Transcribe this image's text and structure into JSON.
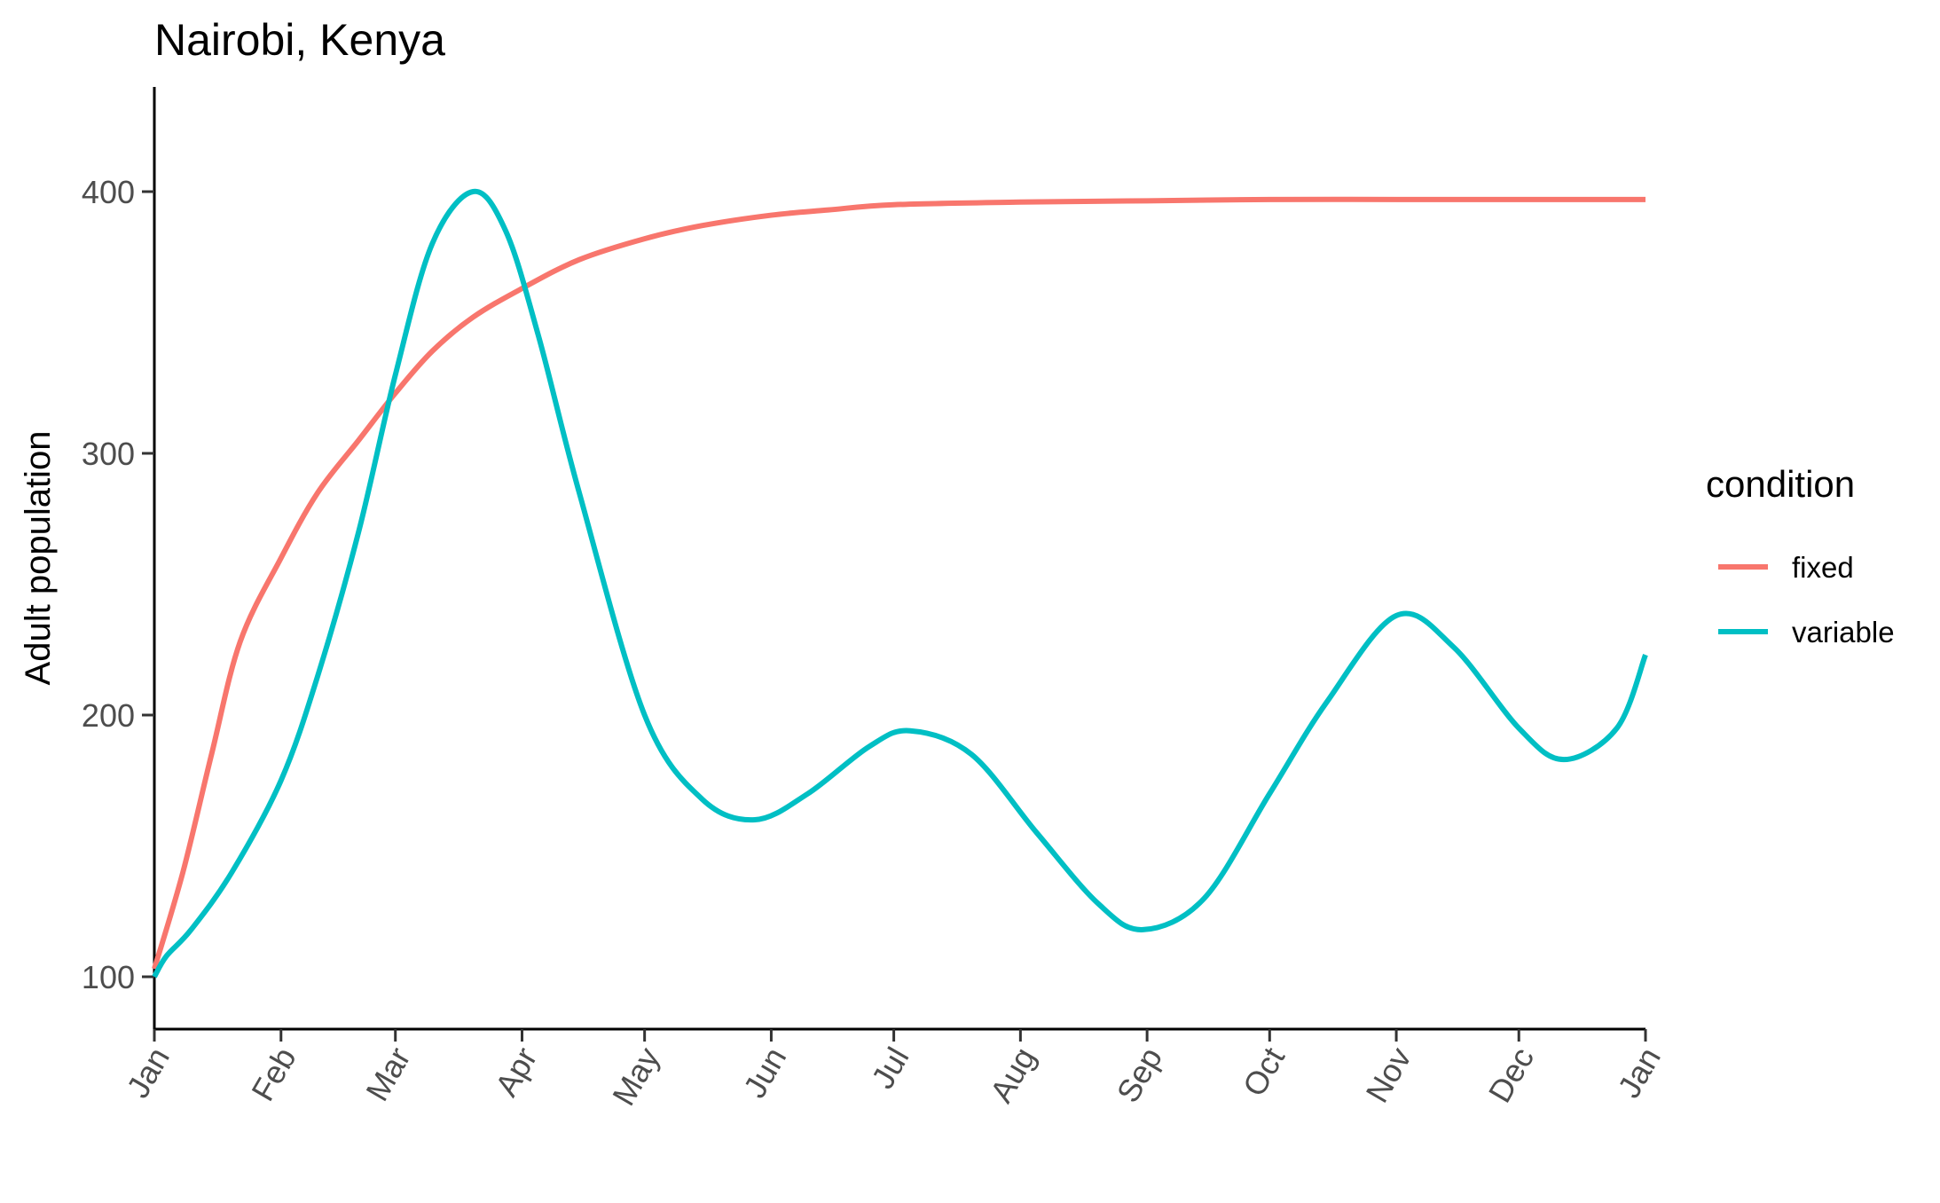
{
  "chart_data": {
    "type": "line",
    "title": "Nairobi, Kenya",
    "xlabel": "",
    "ylabel": "Adult population",
    "x_ticks": [
      "Jan",
      "Feb",
      "Mar",
      "Apr",
      "May",
      "Jun",
      "Jul",
      "Aug",
      "Sep",
      "Oct",
      "Nov",
      "Dec",
      "Jan"
    ],
    "x_tick_dates": [
      "2021-01-01",
      "2021-02-01",
      "2021-03-01",
      "2021-04-01",
      "2021-05-01",
      "2021-06-01",
      "2021-07-01",
      "2021-08-01",
      "2021-09-01",
      "2021-10-01",
      "2021-11-01",
      "2021-12-01",
      "2022-01-01"
    ],
    "y_ticks": [
      100,
      200,
      300,
      400
    ],
    "ylim": [
      80,
      440
    ],
    "grid": false,
    "legend": {
      "title": "condition",
      "placement": "right"
    },
    "series": [
      {
        "name": "fixed",
        "color": "#F8766D",
        "x": [
          "2021-01-01",
          "2021-01-08",
          "2021-01-15",
          "2021-01-22",
          "2021-02-01",
          "2021-02-10",
          "2021-02-20",
          "2021-03-01",
          "2021-03-10",
          "2021-03-20",
          "2021-04-01",
          "2021-04-15",
          "2021-05-01",
          "2021-05-15",
          "2021-06-01",
          "2021-06-15",
          "2021-07-01",
          "2021-08-01",
          "2021-09-01",
          "2021-10-01",
          "2021-11-01",
          "2021-12-01",
          "2022-01-01"
        ],
        "y": [
          103,
          140,
          185,
          228,
          260,
          285,
          305,
          323,
          339,
          352,
          363,
          374,
          382,
          387,
          391,
          393,
          395,
          396,
          396.5,
          397,
          397,
          397,
          397
        ]
      },
      {
        "name": "variable",
        "color": "#00BFC4",
        "x": [
          "2021-01-01",
          "2021-01-04",
          "2021-01-10",
          "2021-01-20",
          "2021-02-01",
          "2021-02-10",
          "2021-02-20",
          "2021-03-01",
          "2021-03-10",
          "2021-03-20",
          "2021-03-28",
          "2021-04-05",
          "2021-04-15",
          "2021-05-01",
          "2021-05-15",
          "2021-05-28",
          "2021-06-10",
          "2021-06-25",
          "2021-07-05",
          "2021-07-20",
          "2021-08-05",
          "2021-08-20",
          "2021-08-31",
          "2021-09-15",
          "2021-10-01",
          "2021-10-15",
          "2021-11-01",
          "2021-11-15",
          "2021-12-01",
          "2021-12-12",
          "2021-12-25",
          "2022-01-01"
        ],
        "y": [
          100,
          108,
          118,
          140,
          175,
          215,
          270,
          330,
          380,
          400,
          385,
          345,
          285,
          200,
          168,
          160,
          170,
          188,
          194,
          185,
          155,
          128,
          118,
          130,
          170,
          205,
          238,
          226,
          195,
          183,
          195,
          223
        ]
      }
    ]
  }
}
